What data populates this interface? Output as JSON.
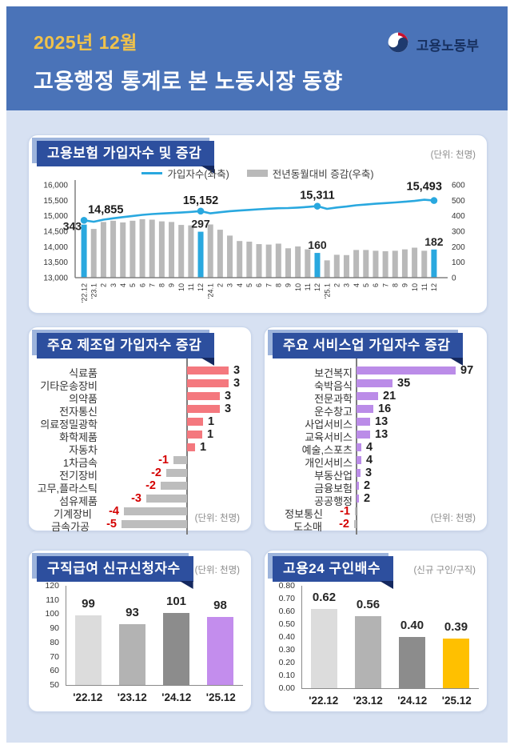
{
  "header": {
    "period": "2025년 12월",
    "title": "고용행정 통계로 본 노동시장 동향",
    "agency": "고용노동부"
  },
  "colors": {
    "header_bg": "#4a73b8",
    "page_bg": "#d7e1f2",
    "ribbon": "#2d4f9e",
    "ribbon_shadow": "#9db4dc",
    "ribbon_fold": "#14285f",
    "accent_yellow": "#f0c24b",
    "line_blue": "#29a8df",
    "bar_gray": "#b9b9b9",
    "neg_gray": "#bdbdbd",
    "manufacturing_pos": "#f4787e",
    "services_pos": "#bb8ce8",
    "neg_red": "#d40000",
    "benefit_colors": [
      "#dcdcdc",
      "#b3b3b3",
      "#8c8c8c",
      "#c38ded"
    ],
    "ratio_colors": [
      "#dcdcdc",
      "#b3b3b3",
      "#8c8c8c",
      "#ffc000"
    ],
    "logo_navy": "#1e3a6e",
    "logo_red": "#c8102e"
  },
  "panels": {
    "insurance": {
      "title": "고용보험 가입자수 및 증감",
      "unit": "(단위: 천명)",
      "legend_line": "가입자수(좌축)",
      "legend_bar": "전년동월대비 증감(우축)"
    },
    "manufacturing": {
      "title": "주요 제조업 가입자수 증감",
      "unit": "(단위: 천명)"
    },
    "services": {
      "title": "주요 서비스업 가입자수 증감",
      "unit": "(단위: 천명)"
    },
    "benefits": {
      "title": "구직급여 신규신청자수",
      "unit": "(단위: 천명)"
    },
    "ratio": {
      "title": "고용24 구인배수",
      "unit": "(신규 구인/구직)"
    }
  },
  "chart_data": [
    {
      "id": "insurance",
      "type": "line",
      "title": "고용보험 가입자수 및 증감",
      "unit": "천명",
      "left_axis": {
        "label": "가입자수(좌축)",
        "ticks": [
          "16,000",
          "15,500",
          "15,000",
          "14,500",
          "14,000",
          "13,500",
          "13,000"
        ],
        "range": [
          13000,
          16000
        ]
      },
      "right_axis": {
        "label": "전년동월대비 증감(우축)",
        "ticks": [
          "600",
          "500",
          "400",
          "300",
          "200",
          "100",
          "0"
        ],
        "range": [
          0,
          600
        ]
      },
      "months_columns": [
        "label",
        "change_bar",
        "subscribers_line"
      ],
      "months": [
        [
          "'22.12",
          343,
          14855
        ],
        [
          "'23.1",
          315,
          14808
        ],
        [
          "2",
          360,
          14875
        ],
        [
          "3",
          368,
          14920
        ],
        [
          "4",
          357,
          14958
        ],
        [
          "5",
          368,
          14995
        ],
        [
          "6",
          378,
          15030
        ],
        [
          "7",
          375,
          15056
        ],
        [
          "8",
          364,
          15075
        ],
        [
          "9",
          360,
          15090
        ],
        [
          "10",
          341,
          15105
        ],
        [
          "11",
          338,
          15125
        ],
        [
          "12",
          297,
          15152
        ],
        [
          "'24.1",
          344,
          15080
        ],
        [
          "2",
          310,
          15115
        ],
        [
          "3",
          272,
          15150
        ],
        [
          "4",
          237,
          15170
        ],
        [
          "5",
          233,
          15190
        ],
        [
          "6",
          217,
          15210
        ],
        [
          "7",
          214,
          15230
        ],
        [
          "8",
          220,
          15245
        ],
        [
          "9",
          190,
          15250
        ],
        [
          "10",
          202,
          15265
        ],
        [
          "11",
          183,
          15285
        ],
        [
          "12",
          160,
          15311
        ],
        [
          "'25.1",
          112,
          15225
        ],
        [
          "2",
          148,
          15268
        ],
        [
          "3",
          146,
          15300
        ],
        [
          "4",
          179,
          15340
        ],
        [
          "5",
          179,
          15365
        ],
        [
          "6",
          174,
          15390
        ],
        [
          "7",
          171,
          15410
        ],
        [
          "8",
          174,
          15430
        ],
        [
          "9",
          183,
          15455
        ],
        [
          "10",
          194,
          15480
        ],
        [
          "11",
          174,
          15520
        ],
        [
          "12",
          182,
          15493
        ]
      ],
      "highlights": [
        {
          "index": 0,
          "subscribers_label": "14,855",
          "change_label": "343"
        },
        {
          "index": 12,
          "subscribers_label": "15,152",
          "change_label": "297"
        },
        {
          "index": 24,
          "subscribers_label": "15,311",
          "change_label": "160"
        },
        {
          "index": 36,
          "subscribers_label": "15,493",
          "change_label": "182"
        }
      ]
    },
    {
      "id": "manufacturing",
      "type": "bar",
      "title": "주요 제조업 가입자수 증감",
      "unit": "천명",
      "rows": [
        {
          "label": "식료품",
          "value": 3,
          "len": 52
        },
        {
          "label": "기타운송장비",
          "value": 3,
          "len": 52
        },
        {
          "label": "의약품",
          "value": 3,
          "len": 41
        },
        {
          "label": "전자통신",
          "value": 3,
          "len": 41
        },
        {
          "label": "의료정밀광학",
          "value": 1,
          "len": 20
        },
        {
          "label": "화학제품",
          "value": 1,
          "len": 19
        },
        {
          "label": "자동차",
          "value": 1,
          "len": 10
        },
        {
          "label": "1차금속",
          "value": -1,
          "len": 17
        },
        {
          "label": "전기장비",
          "value": -2,
          "len": 26
        },
        {
          "label": "고무,플라스틱",
          "value": -2,
          "len": 33
        },
        {
          "label": "섬유제품",
          "value": -3,
          "len": 51
        },
        {
          "label": "기계장비",
          "value": -4,
          "len": 79
        },
        {
          "label": "금속가공",
          "value": -5,
          "len": 82
        }
      ]
    },
    {
      "id": "services",
      "type": "bar",
      "title": "주요 서비스업 가입자수 증감",
      "unit": "천명",
      "rows": [
        {
          "label": "보건복지",
          "value": 97,
          "len": 124
        },
        {
          "label": "숙박음식",
          "value": 35,
          "len": 45
        },
        {
          "label": "전문과학",
          "value": 21,
          "len": 27
        },
        {
          "label": "운수창고",
          "value": 16,
          "len": 21
        },
        {
          "label": "사업서비스",
          "value": 13,
          "len": 17
        },
        {
          "label": "교육서비스",
          "value": 13,
          "len": 17
        },
        {
          "label": "예술,스포츠",
          "value": 4,
          "len": 6
        },
        {
          "label": "개인서비스",
          "value": 4,
          "len": 6
        },
        {
          "label": "부동산업",
          "value": 3,
          "len": 5
        },
        {
          "label": "금융보험",
          "value": 2,
          "len": 3
        },
        {
          "label": "공공행정",
          "value": 2,
          "len": 3
        },
        {
          "label": "정보통신",
          "value": -1,
          "len": 2
        },
        {
          "label": "도소매",
          "value": -2,
          "len": 3
        }
      ]
    },
    {
      "id": "benefits",
      "type": "bar",
      "title": "구직급여 신규신청자수",
      "unit": "천명",
      "categories": [
        "'22.12",
        "'23.12",
        "'24.12",
        "'25.12"
      ],
      "values": [
        99,
        93,
        101,
        98
      ],
      "labels": [
        "99",
        "93",
        "101",
        "98"
      ],
      "yticks": [
        "120",
        "110",
        "100",
        "90",
        "80",
        "70",
        "60",
        "50"
      ],
      "ylim": [
        50,
        120
      ]
    },
    {
      "id": "ratio",
      "type": "bar",
      "title": "고용24 구인배수",
      "unit": "신규 구인/구직",
      "categories": [
        "'22.12",
        "'23.12",
        "'24.12",
        "'25.12"
      ],
      "values": [
        0.62,
        0.56,
        0.4,
        0.39
      ],
      "labels": [
        "0.62",
        "0.56",
        "0.40",
        "0.39"
      ],
      "yticks": [
        "0.80",
        "0.70",
        "0.60",
        "0.50",
        "0.40",
        "0.30",
        "0.20",
        "0.10",
        "0.00"
      ],
      "ylim": [
        0,
        0.8
      ]
    }
  ]
}
